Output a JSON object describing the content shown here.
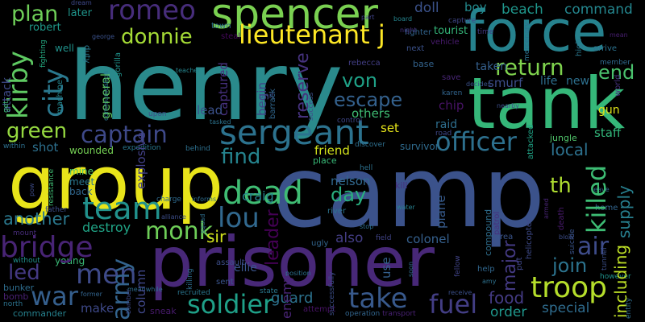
{
  "words": [
    {
      "text": "henry",
      "color": "#2a8a8c"
    },
    {
      "text": "camp",
      "color": "#3b528b"
    },
    {
      "text": "group",
      "color": "#e8e41a"
    },
    {
      "text": "prisoner",
      "color": "#482878"
    },
    {
      "text": "tank",
      "color": "#35b779"
    },
    {
      "text": "force",
      "color": "#26828e"
    },
    {
      "text": "spencer",
      "color": "#7ad151"
    },
    {
      "text": "sergeant",
      "color": "#2c728e"
    },
    {
      "text": "lieutenant j",
      "color": "#fde725"
    },
    {
      "text": "romeo",
      "color": "#472d7b"
    },
    {
      "text": "plan",
      "color": "#6ece58"
    },
    {
      "text": "donnie",
      "color": "#a5db36"
    },
    {
      "text": "captain",
      "color": "#3e4989"
    },
    {
      "text": "kirby",
      "color": "#5ec962"
    },
    {
      "text": "city",
      "color": "#2a788e"
    },
    {
      "text": "green",
      "color": "#95d840"
    },
    {
      "text": "team",
      "color": "#21918c"
    },
    {
      "text": "bridge",
      "color": "#482475"
    },
    {
      "text": "men",
      "color": "#3e4a89"
    },
    {
      "text": "war",
      "color": "#355f8d"
    },
    {
      "text": "dead",
      "color": "#3fbc73"
    },
    {
      "text": "lou",
      "color": "#31688e"
    },
    {
      "text": "monk",
      "color": "#6ece58"
    },
    {
      "text": "army",
      "color": "#33638d"
    },
    {
      "text": "soldier",
      "color": "#1fa088"
    },
    {
      "text": "take",
      "color": "#38598c"
    },
    {
      "text": "troop",
      "color": "#b5de2b"
    },
    {
      "text": "killed",
      "color": "#3dbc74"
    },
    {
      "text": "officer",
      "color": "#2d708e"
    },
    {
      "text": "return",
      "color": "#7fd34e"
    },
    {
      "text": "end",
      "color": "#4ac16d"
    },
    {
      "text": "fuel",
      "color": "#433e85"
    },
    {
      "text": "escape",
      "color": "#34618d"
    },
    {
      "text": "von",
      "color": "#1fa187"
    },
    {
      "text": "find",
      "color": "#25848e"
    },
    {
      "text": "day",
      "color": "#29af7f"
    },
    {
      "text": "th",
      "color": "#addc30"
    },
    {
      "text": "air",
      "color": "#3e4c8a"
    },
    {
      "text": "join",
      "color": "#2c738e"
    },
    {
      "text": "major",
      "color": "#443a83"
    },
    {
      "text": "local",
      "color": "#2d718e"
    },
    {
      "text": "supply",
      "color": "#277f8e"
    },
    {
      "text": "including",
      "color": "#bddf26"
    },
    {
      "text": "command",
      "color": "#24868e"
    },
    {
      "text": "beach",
      "color": "#1f968b"
    },
    {
      "text": "reserve",
      "color": "#46327e"
    },
    {
      "text": "leader",
      "color": "#440154"
    },
    {
      "text": "sir",
      "color": "#d0e11c"
    },
    {
      "text": "craig",
      "color": "#26828e"
    },
    {
      "text": "another",
      "color": "#2a788e"
    },
    {
      "text": "destroy",
      "color": "#20a486"
    },
    {
      "text": "led",
      "color": "#443983"
    },
    {
      "text": "colonel",
      "color": "#35608d"
    },
    {
      "text": "food",
      "color": "#443b84"
    },
    {
      "text": "special",
      "color": "#2f6c8e"
    },
    {
      "text": "order",
      "color": "#1f968b"
    },
    {
      "text": "make",
      "color": "#3e4989"
    },
    {
      "text": "guard",
      "color": "#2c728e"
    },
    {
      "text": "others",
      "color": "#3fbc73"
    },
    {
      "text": "friend",
      "color": "#d2e21b"
    },
    {
      "text": "set",
      "color": "#e5e419"
    },
    {
      "text": "boy",
      "color": "#238a8d"
    },
    {
      "text": "doll",
      "color": "#3b528b"
    },
    {
      "text": "captured",
      "color": "#46307e"
    },
    {
      "text": "explosive",
      "color": "#424086"
    },
    {
      "text": "general",
      "color": "#5ec962"
    },
    {
      "text": "lead",
      "color": "#3b518b"
    },
    {
      "text": "shot",
      "color": "#2d708e"
    },
    {
      "text": "begin",
      "color": "#414487"
    },
    {
      "text": "column",
      "color": "#3f4788"
    },
    {
      "text": "nelson",
      "color": "#31688e"
    },
    {
      "text": "raid",
      "color": "#2e6e8e"
    },
    {
      "text": "chip",
      "color": "#471365"
    },
    {
      "text": "smurf",
      "color": "#3d4e8a"
    },
    {
      "text": "taken",
      "color": "#35608d"
    },
    {
      "text": "staff",
      "color": "#32b67a"
    },
    {
      "text": "gun",
      "color": "#dfe318"
    },
    {
      "text": "new",
      "color": "#2d708e"
    },
    {
      "text": "life",
      "color": "#2e6f8e"
    },
    {
      "text": "jungle",
      "color": "#50c46a"
    },
    {
      "text": "plane",
      "color": "#375b8d"
    },
    {
      "text": "also",
      "color": "#433d84"
    },
    {
      "text": "use",
      "color": "#34608d"
    },
    {
      "text": "ellie",
      "color": "#3a548c"
    },
    {
      "text": "wounded",
      "color": "#75d054"
    },
    {
      "text": "young",
      "color": "#3aba76"
    },
    {
      "text": "sneak",
      "color": "#481b6d"
    },
    {
      "text": "mine",
      "color": "#50c46a"
    },
    {
      "text": "meet",
      "color": "#2a768e"
    },
    {
      "text": "back",
      "color": "#31678e"
    },
    {
      "text": "robert",
      "color": "#1f998a"
    },
    {
      "text": "later",
      "color": "#1f958b"
    },
    {
      "text": "duty",
      "color": "#2a788e"
    },
    {
      "text": "well",
      "color": "#20928c"
    },
    {
      "text": "attack",
      "color": "#3e4a89"
    },
    {
      "text": "fighting",
      "color": "#25ab82"
    },
    {
      "text": "machine",
      "color": "#24868e"
    },
    {
      "text": "resistance",
      "color": "#3fbc73"
    },
    {
      "text": "bunker",
      "color": "#2e6d8e"
    },
    {
      "text": "bomb",
      "color": "#482173"
    },
    {
      "text": "commander",
      "color": "#26818e"
    },
    {
      "text": "north",
      "color": "#2c738e"
    },
    {
      "text": "without",
      "color": "#21918c"
    },
    {
      "text": "father",
      "color": "#3d4e8a"
    },
    {
      "text": "mount",
      "color": "#472c7a"
    },
    {
      "text": "world",
      "color": "#46327e"
    },
    {
      "text": "member",
      "color": "#30698e"
    },
    {
      "text": "arrive",
      "color": "#2c728e"
    },
    {
      "text": "high",
      "color": "#2a788e"
    },
    {
      "text": "mean",
      "color": "#481f70"
    },
    {
      "text": "mercenary",
      "color": "#2c718e"
    },
    {
      "text": "tourist",
      "color": "#34b679"
    },
    {
      "text": "time",
      "color": "#443983"
    },
    {
      "text": "vehicle",
      "color": "#481b6d"
    },
    {
      "text": "fighter",
      "color": "#32648e"
    },
    {
      "text": "next",
      "color": "#3b528b"
    },
    {
      "text": "capture",
      "color": "#3f4788"
    },
    {
      "text": "part",
      "color": "#404387"
    },
    {
      "text": "board",
      "color": "#25858e"
    },
    {
      "text": "night",
      "color": "#46337f"
    },
    {
      "text": "town",
      "color": "#2d708e"
    },
    {
      "text": "steal",
      "color": "#46085c"
    },
    {
      "text": "unit",
      "color": "#3c4f8a"
    },
    {
      "text": "barrack",
      "color": "#31678e"
    },
    {
      "text": "teacher",
      "color": "#25858e"
    },
    {
      "text": "upon",
      "color": "#3c4f8a"
    },
    {
      "text": "tasked",
      "color": "#2c738e"
    },
    {
      "text": "rebecca",
      "color": "#433e85"
    },
    {
      "text": "base",
      "color": "#33638d"
    },
    {
      "text": "save",
      "color": "#482576"
    },
    {
      "text": "decides",
      "color": "#3b528b"
    },
    {
      "text": "karen",
      "color": "#32658e"
    },
    {
      "text": "success",
      "color": "#3c4f8a"
    },
    {
      "text": "control",
      "color": "#3f4788"
    },
    {
      "text": "attacked",
      "color": "#20a386"
    },
    {
      "text": "nearby",
      "color": "#3d4e8a"
    },
    {
      "text": "survivor",
      "color": "#2f6b8e"
    },
    {
      "text": "discover",
      "color": "#2e6f8e"
    },
    {
      "text": "road",
      "color": "#3f4889"
    },
    {
      "text": "hell",
      "color": "#2d718e"
    },
    {
      "text": "place",
      "color": "#38b977"
    },
    {
      "text": "river",
      "color": "#2c738e"
    },
    {
      "text": "water",
      "color": "#277f8e"
    },
    {
      "text": "kill",
      "color": "#46307e"
    },
    {
      "text": "compound",
      "color": "#2e6e8e"
    },
    {
      "text": "helicopter",
      "color": "#3e4a89"
    },
    {
      "text": "put",
      "color": "#3f4788"
    },
    {
      "text": "patrol",
      "color": "#46307e"
    },
    {
      "text": "armed",
      "color": "#482475"
    },
    {
      "text": "death",
      "color": "#481a6c"
    },
    {
      "text": "leave",
      "color": "#31688e"
    },
    {
      "text": "home",
      "color": "#32658e"
    },
    {
      "text": "suicide",
      "color": "#3a548c"
    },
    {
      "text": "blow",
      "color": "#3d4d8a"
    },
    {
      "text": "however",
      "color": "#20928c"
    },
    {
      "text": "tunnel",
      "color": "#3c4f8a"
    },
    {
      "text": "entity",
      "color": "#2e6d8e"
    },
    {
      "text": "ugly",
      "color": "#32658e"
    },
    {
      "text": "stop",
      "color": "#2e6e8e"
    },
    {
      "text": "field",
      "color": "#404387"
    },
    {
      "text": "soon",
      "color": "#2f6b8e"
    },
    {
      "text": "area",
      "color": "#3a548c"
    },
    {
      "text": "fellow",
      "color": "#404387"
    },
    {
      "text": "help",
      "color": "#31678e"
    },
    {
      "text": "amy",
      "color": "#2d718e"
    },
    {
      "text": "receive",
      "color": "#3b518b"
    },
    {
      "text": "successfully",
      "color": "#3c4f8a"
    },
    {
      "text": "operation",
      "color": "#32658e"
    },
    {
      "text": "transport",
      "color": "#482173"
    },
    {
      "text": "position",
      "color": "#2d718e"
    },
    {
      "text": "state",
      "color": "#2a788e"
    },
    {
      "text": "attempt",
      "color": "#471365"
    },
    {
      "text": "sent",
      "color": "#3a548c"
    },
    {
      "text": "assault",
      "color": "#3d4e8a"
    },
    {
      "text": "recruited",
      "color": "#2a768e"
    },
    {
      "text": "killing",
      "color": "#2e6e8e"
    },
    {
      "text": "bomber",
      "color": "#3e4a89"
    },
    {
      "text": "former",
      "color": "#32648e"
    },
    {
      "text": "meanwhile",
      "color": "#2e6d8e"
    },
    {
      "text": "alliance",
      "color": "#3d4e8a"
    },
    {
      "text": "charge",
      "color": "#2f6b8e"
    },
    {
      "text": "informs",
      "color": "#2e6d8e"
    },
    {
      "text": "expedition",
      "color": "#2a788e"
    },
    {
      "text": "behind",
      "color": "#2d708e"
    },
    {
      "text": "gorilla",
      "color": "#20928c"
    },
    {
      "text": "communication",
      "color": "#2c728e"
    },
    {
      "text": "george",
      "color": "#3b528b"
    },
    {
      "text": "dream",
      "color": "#3e4989"
    },
    {
      "text": "get",
      "color": "#3fbc73"
    },
    {
      "text": "pow",
      "color": "#3e4c8a"
    },
    {
      "text": "within",
      "color": "#2d708e"
    },
    {
      "text": "squad",
      "color": "#2e6e8e"
    },
    {
      "text": "enemy",
      "color": "#482475"
    }
  ]
}
